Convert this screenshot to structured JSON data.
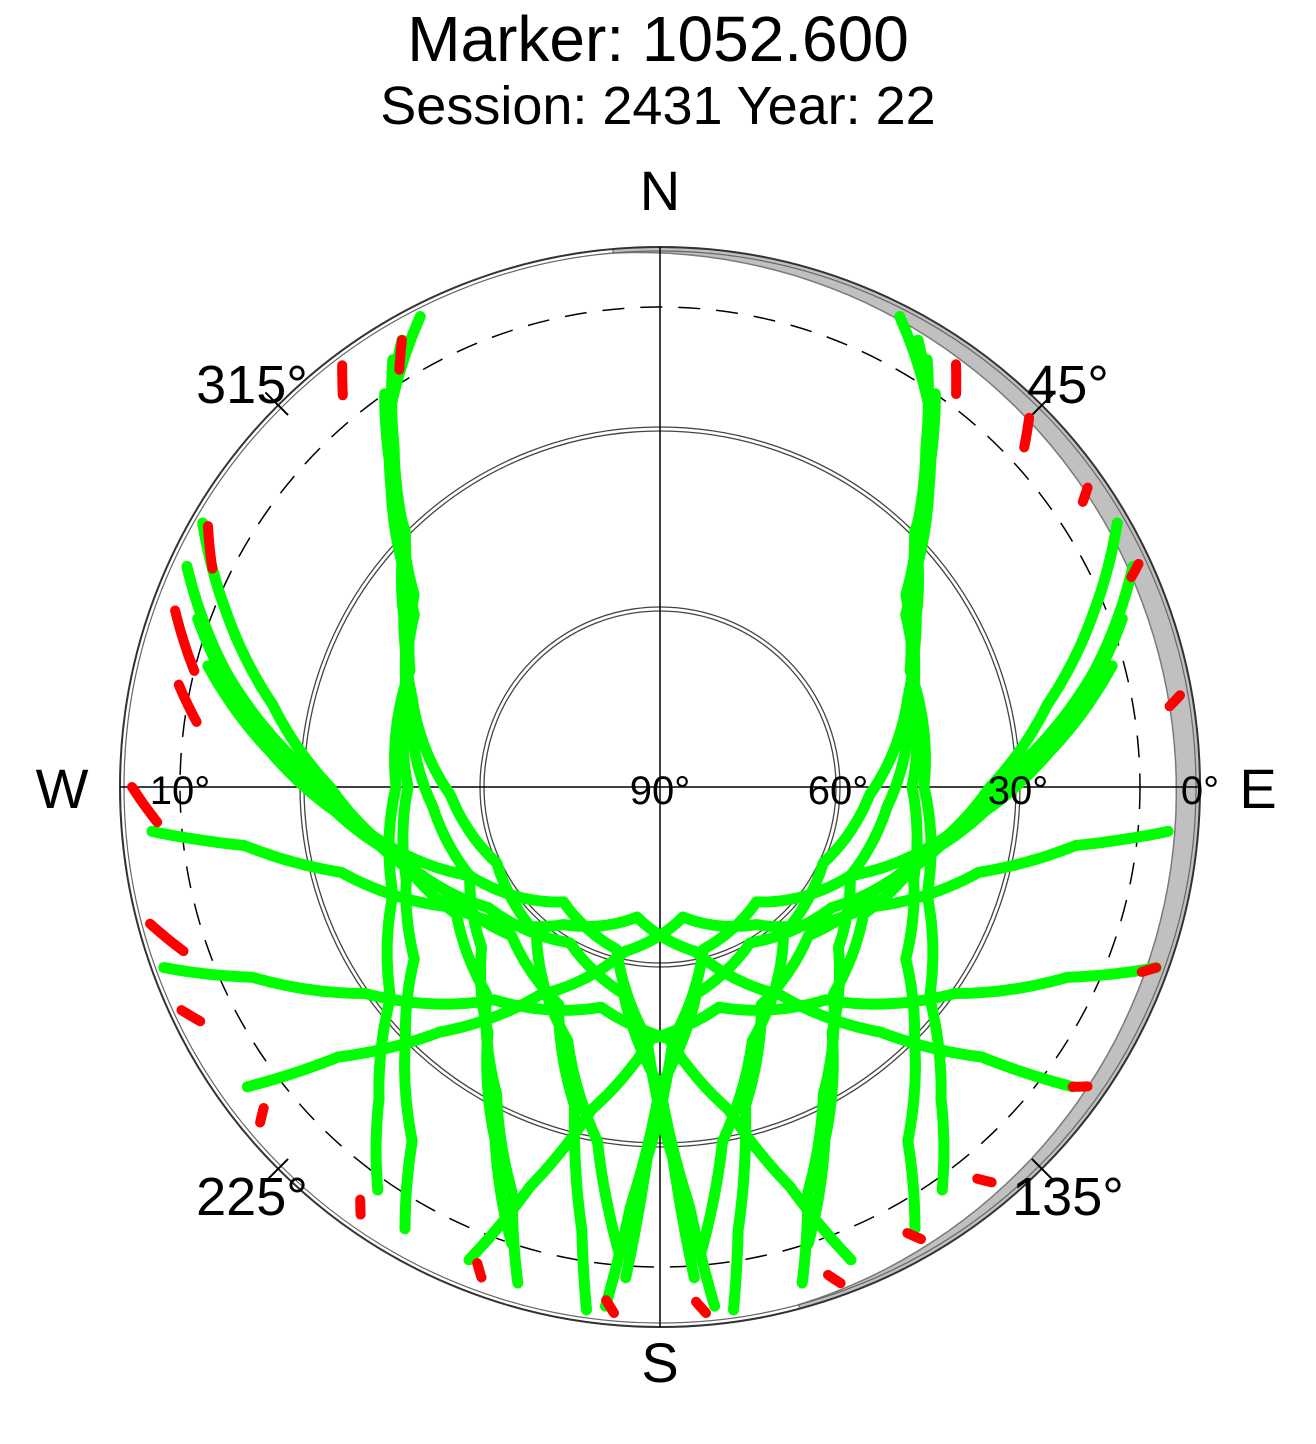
{
  "title": {
    "line1": "Marker: 1052.600",
    "line2": "Session: 2431 Year: 22"
  },
  "chart_data": {
    "type": "scatter",
    "projection": "polar",
    "radial_axis": "elevation",
    "angular_axis": "azimuth",
    "cardinal_labels": {
      "north": "N",
      "east": "E",
      "south": "S",
      "west": "W"
    },
    "azimuth_labels": [
      "45°",
      "135°",
      "225°",
      "315°"
    ],
    "elevation_tick_labels": [
      "0°",
      "30°",
      "60°",
      "90°",
      "10°"
    ],
    "elevation_rings": [
      0,
      30,
      60
    ],
    "cutoff_elevation_dashed": 10,
    "masked_sector_shading": "gray band near horizon (north-east)",
    "colors": {
      "tracked": "#00ff00",
      "flagged": "#ff0000",
      "mask": "#c0c0c0"
    },
    "series": [
      {
        "color": "#00ff00",
        "tracks": [
          [
            [
              325,
              10
            ],
            [
              320,
              20
            ],
            [
              315,
              30
            ],
            [
              305,
              40
            ],
            [
              290,
              45
            ],
            [
              270,
              48
            ],
            [
              250,
              45
            ],
            [
              235,
              40
            ],
            [
              225,
              30
            ],
            [
              215,
              18
            ],
            [
              210,
              5
            ]
          ],
          [
            [
              328,
              6
            ],
            [
              322,
              18
            ],
            [
              316,
              28
            ],
            [
              308,
              38
            ],
            [
              295,
              44
            ],
            [
              270,
              46
            ],
            [
              248,
              42
            ],
            [
              232,
              33
            ],
            [
              222,
              20
            ],
            [
              215,
              8
            ]
          ],
          [
            [
              330,
              4
            ],
            [
              323,
              15
            ],
            [
              317,
              25
            ],
            [
              310,
              35
            ],
            [
              298,
              42
            ],
            [
              285,
              47
            ],
            [
              265,
              52
            ],
            [
              245,
              55
            ],
            [
              228,
              50
            ],
            [
              215,
              40
            ],
            [
              205,
              25
            ],
            [
              198,
              10
            ]
          ],
          [
            [
              333,
              2
            ],
            [
              325,
              12
            ],
            [
              318,
              23
            ],
            [
              311,
              33
            ],
            [
              302,
              40
            ],
            [
              290,
              46
            ],
            [
              268,
              55
            ],
            [
              245,
              60
            ],
            [
              220,
              58
            ],
            [
              200,
              45
            ],
            [
              190,
              30
            ],
            [
              185,
              12
            ]
          ],
          [
            [
              35,
              10
            ],
            [
              40,
              20
            ],
            [
              45,
              30
            ],
            [
              55,
              40
            ],
            [
              70,
              45
            ],
            [
              90,
              48
            ],
            [
              110,
              45
            ],
            [
              125,
              40
            ],
            [
              135,
              30
            ],
            [
              145,
              18
            ],
            [
              150,
              5
            ]
          ],
          [
            [
              32,
              6
            ],
            [
              38,
              18
            ],
            [
              44,
              28
            ],
            [
              52,
              38
            ],
            [
              65,
              44
            ],
            [
              90,
              46
            ],
            [
              112,
              42
            ],
            [
              128,
              33
            ],
            [
              138,
              20
            ],
            [
              145,
              8
            ]
          ],
          [
            [
              30,
              4
            ],
            [
              37,
              15
            ],
            [
              43,
              25
            ],
            [
              50,
              35
            ],
            [
              62,
              42
            ],
            [
              75,
              47
            ],
            [
              95,
              52
            ],
            [
              115,
              55
            ],
            [
              132,
              50
            ],
            [
              145,
              40
            ],
            [
              155,
              25
            ],
            [
              162,
              10
            ]
          ],
          [
            [
              27,
              2
            ],
            [
              35,
              12
            ],
            [
              42,
              23
            ],
            [
              49,
              33
            ],
            [
              58,
              40
            ],
            [
              70,
              46
            ],
            [
              92,
              55
            ],
            [
              115,
              60
            ],
            [
              140,
              58
            ],
            [
              160,
              45
            ],
            [
              170,
              30
            ],
            [
              175,
              12
            ]
          ],
          [
            [
              290,
              8
            ],
            [
              280,
              20
            ],
            [
              270,
              32
            ],
            [
              255,
              45
            ],
            [
              235,
              55
            ],
            [
              210,
              60
            ],
            [
              190,
              55
            ],
            [
              180,
              40
            ],
            [
              176,
              20
            ],
            [
              174,
              3
            ]
          ],
          [
            [
              295,
              3
            ],
            [
              285,
              15
            ],
            [
              275,
              28
            ],
            [
              262,
              40
            ],
            [
              245,
              50
            ],
            [
              225,
              55
            ],
            [
              205,
              50
            ],
            [
              195,
              35
            ],
            [
              190,
              15
            ],
            [
              188,
              2
            ]
          ],
          [
            [
              300,
              2
            ],
            [
              292,
              12
            ],
            [
              282,
              24
            ],
            [
              270,
              35
            ],
            [
              255,
              45
            ],
            [
              238,
              50
            ],
            [
              220,
              45
            ],
            [
              208,
              32
            ],
            [
              200,
              18
            ],
            [
              196,
              4
            ]
          ],
          [
            [
              285,
              12
            ],
            [
              275,
              25
            ],
            [
              262,
              40
            ],
            [
              245,
              55
            ],
            [
              220,
              65
            ],
            [
              195,
              62
            ],
            [
              183,
              48
            ],
            [
              178,
              28
            ],
            [
              176,
              8
            ]
          ],
          [
            [
              70,
              8
            ],
            [
              80,
              20
            ],
            [
              90,
              32
            ],
            [
              105,
              45
            ],
            [
              125,
              55
            ],
            [
              150,
              60
            ],
            [
              170,
              55
            ],
            [
              180,
              40
            ],
            [
              184,
              20
            ],
            [
              186,
              3
            ]
          ],
          [
            [
              65,
              3
            ],
            [
              75,
              15
            ],
            [
              85,
              28
            ],
            [
              98,
              40
            ],
            [
              115,
              50
            ],
            [
              135,
              55
            ],
            [
              155,
              50
            ],
            [
              165,
              35
            ],
            [
              170,
              15
            ],
            [
              172,
              2
            ]
          ],
          [
            [
              60,
              2
            ],
            [
              68,
              12
            ],
            [
              78,
              24
            ],
            [
              90,
              35
            ],
            [
              105,
              45
            ],
            [
              122,
              50
            ],
            [
              140,
              45
            ],
            [
              152,
              32
            ],
            [
              160,
              18
            ],
            [
              164,
              4
            ]
          ],
          [
            [
              75,
              12
            ],
            [
              85,
              25
            ],
            [
              98,
              40
            ],
            [
              115,
              55
            ],
            [
              140,
              65
            ],
            [
              165,
              62
            ],
            [
              177,
              48
            ],
            [
              182,
              28
            ],
            [
              184,
              8
            ]
          ],
          [
            [
              265,
              5
            ],
            [
              262,
              20
            ],
            [
              255,
              35
            ],
            [
              240,
              50
            ],
            [
              215,
              62
            ],
            [
              190,
              68
            ],
            [
              168,
              62
            ],
            [
              150,
              50
            ],
            [
              138,
              35
            ],
            [
              130,
              20
            ],
            [
              126,
              5
            ]
          ],
          [
            [
              95,
              5
            ],
            [
              98,
              20
            ],
            [
              105,
              35
            ],
            [
              120,
              50
            ],
            [
              145,
              62
            ],
            [
              170,
              68
            ],
            [
              192,
              62
            ],
            [
              210,
              50
            ],
            [
              222,
              35
            ],
            [
              230,
              20
            ],
            [
              234,
              5
            ]
          ],
          [
            [
              250,
              2
            ],
            [
              245,
              15
            ],
            [
              235,
              30
            ],
            [
              218,
              45
            ],
            [
              195,
              52
            ],
            [
              178,
              48
            ],
            [
              168,
              35
            ],
            [
              162,
              20
            ],
            [
              158,
              5
            ]
          ],
          [
            [
              110,
              2
            ],
            [
              115,
              15
            ],
            [
              125,
              30
            ],
            [
              142,
              45
            ],
            [
              165,
              52
            ],
            [
              182,
              48
            ],
            [
              192,
              35
            ],
            [
              198,
              20
            ],
            [
              202,
              5
            ]
          ]
        ]
      },
      {
        "color": "#ff0000",
        "tracks": [
          [
            [
              330,
              4
            ],
            [
              329,
              6
            ],
            [
              328,
              8
            ]
          ],
          [
            [
              323,
              2
            ],
            [
              322,
              4
            ],
            [
              321,
              6
            ]
          ],
          [
            [
              300,
              3
            ],
            [
              298,
              5
            ],
            [
              296,
              7
            ]
          ],
          [
            [
              290,
              4
            ],
            [
              288,
              6
            ],
            [
              286,
              8
            ],
            [
              284,
              10
            ]
          ],
          [
            [
              282,
              8
            ],
            [
              280,
              10
            ],
            [
              278,
              12
            ]
          ],
          [
            [
              270,
              2
            ],
            [
              268,
              4
            ],
            [
              266,
              6
            ]
          ],
          [
            [
              255,
              2
            ],
            [
              253,
              4
            ],
            [
              251,
              6
            ]
          ],
          [
            [
              245,
              2
            ],
            [
              243,
              4
            ]
          ],
          [
            [
              35,
              4
            ],
            [
              36,
              6
            ],
            [
              37,
              8
            ]
          ],
          [
            [
              45,
              3
            ],
            [
              46,
              5
            ],
            [
              47,
              7
            ]
          ],
          [
            [
              55,
              3
            ],
            [
              56,
              5
            ]
          ],
          [
            [
              65,
              2
            ],
            [
              66,
              4
            ]
          ],
          [
            [
              80,
              2
            ],
            [
              81,
              4
            ]
          ],
          [
            [
              110,
              2
            ],
            [
              111,
              4
            ]
          ],
          [
            [
              125,
              3
            ],
            [
              126,
              5
            ]
          ],
          [
            [
              140,
              4
            ],
            [
              141,
              6
            ]
          ],
          [
            [
              150,
              3
            ],
            [
              151,
              5
            ]
          ],
          [
            [
              160,
              2
            ],
            [
              161,
              4
            ]
          ],
          [
            [
              175,
              2
            ],
            [
              176,
              4
            ]
          ],
          [
            [
              185,
              2
            ],
            [
              186,
              4
            ]
          ],
          [
            [
              200,
              3
            ],
            [
              201,
              5
            ]
          ],
          [
            [
              215,
              3
            ],
            [
              216,
              5
            ]
          ],
          [
            [
              230,
              3
            ],
            [
              231,
              5
            ]
          ]
        ]
      }
    ]
  }
}
